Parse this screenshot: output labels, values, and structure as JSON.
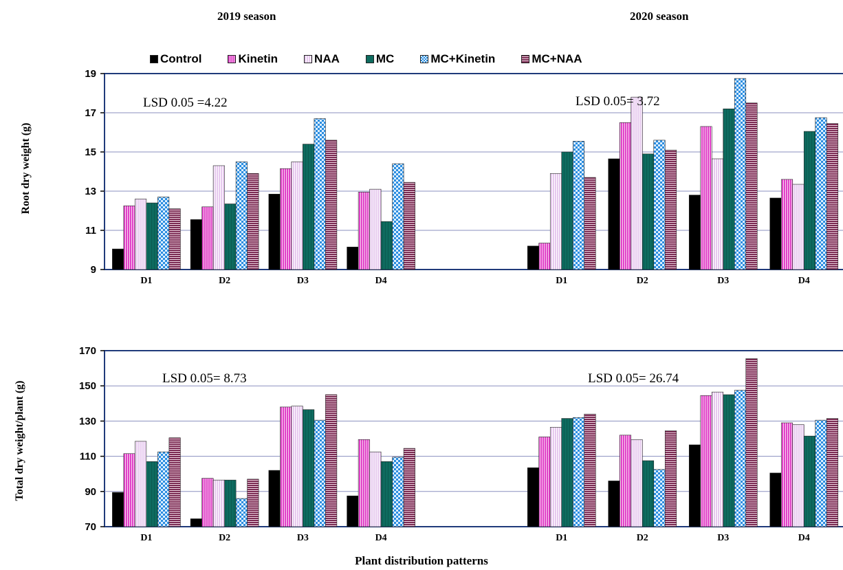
{
  "seasons": [
    "2019 season",
    "2020 season"
  ],
  "legend": [
    "Control",
    "Kinetin",
    "NAA",
    "MC",
    "MC+Kinetin",
    "MC+NAA"
  ],
  "x_title": "Plant distribution patterns",
  "colors": {
    "Control": "#000000",
    "Kinetin": "#e040c8",
    "NAA": "#e6c8ee",
    "MC": "#0e6b5f",
    "MC+Kinetin": "#2b8de0",
    "MC+NAA": "#7a2a52"
  },
  "chart_data": [
    {
      "type": "bar",
      "ylabel": "Root dry weight (g)",
      "ylim": [
        9,
        19
      ],
      "yticks": [
        9,
        11,
        13,
        15,
        17,
        19
      ],
      "categories": [
        "D1",
        "D2",
        "D3",
        "D4"
      ],
      "groups": [
        {
          "season": "2019 season",
          "annotation": "LSD 0.05 =4.22",
          "series": [
            {
              "name": "Control",
              "values": [
                10.05,
                11.55,
                12.85,
                10.15
              ]
            },
            {
              "name": "Kinetin",
              "values": [
                12.25,
                12.2,
                14.15,
                12.95
              ]
            },
            {
              "name": "NAA",
              "values": [
                12.6,
                14.3,
                14.5,
                13.1
              ]
            },
            {
              "name": "MC",
              "values": [
                12.4,
                12.35,
                15.4,
                11.45
              ]
            },
            {
              "name": "MC+Kinetin",
              "values": [
                12.7,
                14.5,
                16.7,
                14.4
              ]
            },
            {
              "name": "MC+NAA",
              "values": [
                12.1,
                13.9,
                15.6,
                13.45
              ]
            }
          ]
        },
        {
          "season": "2020 season",
          "annotation": "LSD 0.05= 3.72",
          "series": [
            {
              "name": "Control",
              "values": [
                10.2,
                14.65,
                12.8,
                12.65
              ]
            },
            {
              "name": "Kinetin",
              "values": [
                10.35,
                16.5,
                16.3,
                13.6
              ]
            },
            {
              "name": "NAA",
              "values": [
                13.9,
                17.8,
                14.65,
                13.35
              ]
            },
            {
              "name": "MC",
              "values": [
                15.0,
                14.9,
                17.2,
                16.05
              ]
            },
            {
              "name": "MC+Kinetin",
              "values": [
                15.55,
                15.6,
                18.75,
                16.75
              ]
            },
            {
              "name": "MC+NAA",
              "values": [
                13.7,
                15.1,
                17.5,
                16.45
              ]
            }
          ]
        }
      ]
    },
    {
      "type": "bar",
      "ylabel": "Total dry weight/plant (g)",
      "ylim": [
        70,
        170
      ],
      "yticks": [
        70,
        90,
        110,
        130,
        150,
        170
      ],
      "categories": [
        "D1",
        "D2",
        "D3",
        "D4"
      ],
      "groups": [
        {
          "season": "2019 season",
          "annotation": "LSD 0.05= 8.73",
          "series": [
            {
              "name": "Control",
              "values": [
                89.5,
                74.5,
                102,
                87.5
              ]
            },
            {
              "name": "Kinetin",
              "values": [
                111.5,
                97.5,
                138,
                119.5
              ]
            },
            {
              "name": "NAA",
              "values": [
                118.5,
                96.5,
                138.5,
                112.5
              ]
            },
            {
              "name": "MC",
              "values": [
                107,
                96.5,
                136.5,
                107
              ]
            },
            {
              "name": "MC+Kinetin",
              "values": [
                112.5,
                86,
                130.5,
                109.5
              ]
            },
            {
              "name": "MC+NAA",
              "values": [
                120.5,
                97,
                145,
                114.5
              ]
            }
          ]
        },
        {
          "season": "2020 season",
          "annotation": "LSD 0.05= 26.74",
          "series": [
            {
              "name": "Control",
              "values": [
                103.5,
                96,
                116.5,
                100.5
              ]
            },
            {
              "name": "Kinetin",
              "values": [
                121,
                122,
                144.5,
                129
              ]
            },
            {
              "name": "NAA",
              "values": [
                126.5,
                119.5,
                146.5,
                128
              ]
            },
            {
              "name": "MC",
              "values": [
                131.5,
                107.5,
                145,
                121.5
              ]
            },
            {
              "name": "MC+Kinetin",
              "values": [
                132,
                102.5,
                147.5,
                130.5
              ]
            },
            {
              "name": "MC+NAA",
              "values": [
                134,
                124.5,
                165.5,
                131.5
              ]
            }
          ]
        }
      ]
    }
  ]
}
